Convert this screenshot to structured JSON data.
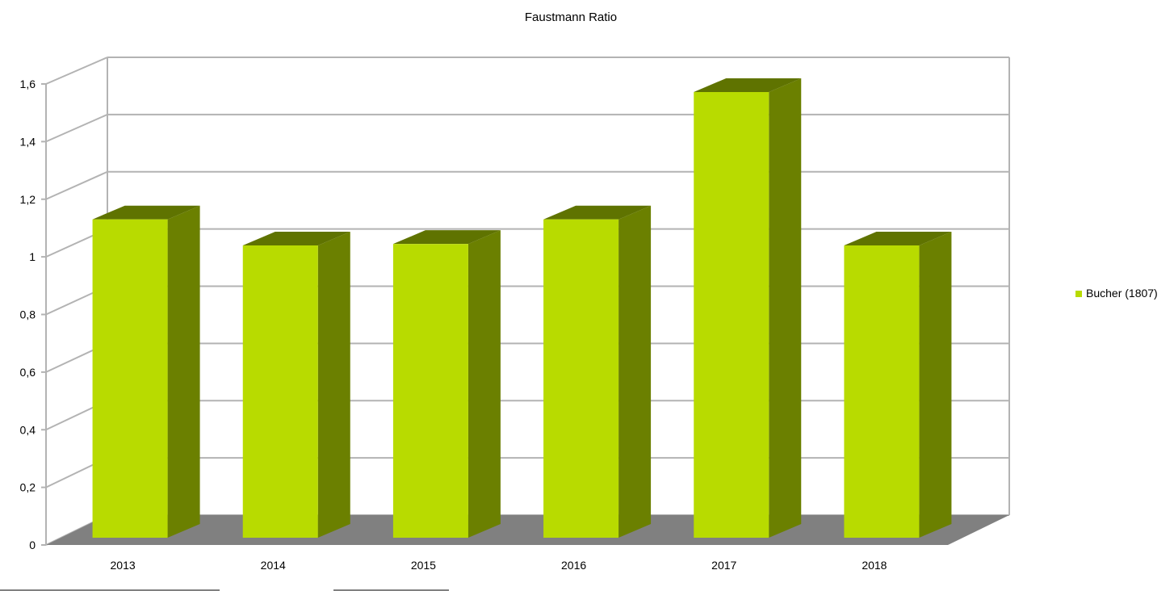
{
  "chart_data": {
    "type": "bar",
    "title": "Faustmann Ratio",
    "xlabel": "",
    "ylabel": "",
    "categories": [
      "2013",
      "2014",
      "2015",
      "2016",
      "2017",
      "2018"
    ],
    "series": [
      {
        "name": "Bucher (1807)",
        "values": [
          1.1,
          1.01,
          1.015,
          1.1,
          1.54,
          1.01
        ]
      }
    ],
    "ylim": [
      0,
      1.6
    ],
    "yticks": [
      "0",
      "0,2",
      "0,4",
      "0,6",
      "0,8",
      "1",
      "1,2",
      "1,4",
      "1,6"
    ],
    "grid": true,
    "legend_position": "right",
    "colors": {
      "bar_front": "#b8db00",
      "bar_side": "#6b8000",
      "bar_top": "#5f7300",
      "floor": "#808080",
      "grid": "#b3b3b3"
    }
  }
}
